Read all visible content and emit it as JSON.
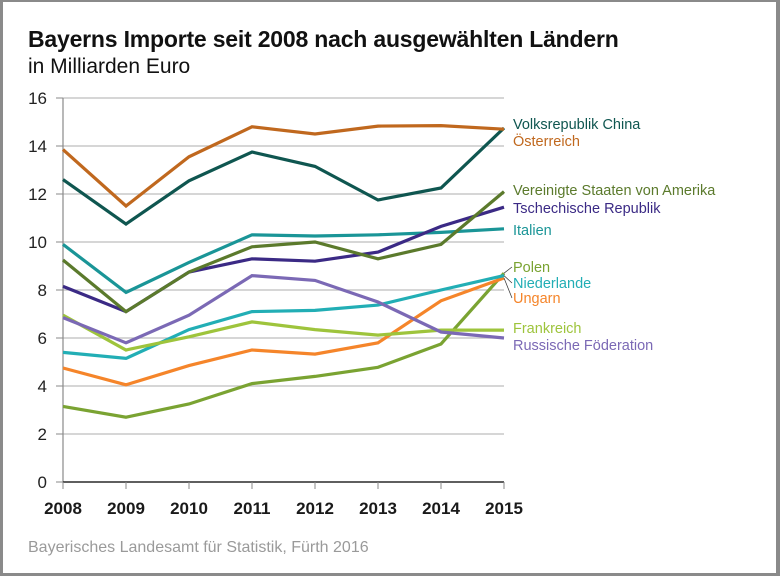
{
  "chart_data": {
    "type": "line",
    "title": "Bayerns Importe seit 2008 nach ausgewählten Ländern",
    "subtitle": "in Milliarden Euro",
    "source": "Bayerisches Landesamt für Statistik, Fürth 2016",
    "xlabel": "",
    "ylabel": "",
    "x": [
      "2008",
      "2009",
      "2010",
      "2011",
      "2012",
      "2013",
      "2014",
      "2015"
    ],
    "ylim": [
      0,
      16
    ],
    "yticks": [
      "0",
      "2",
      "4",
      "6",
      "8",
      "10",
      "12",
      "14",
      "16"
    ],
    "grid": true,
    "legend": "right (direct labels)",
    "series": [
      {
        "name": "Volksrepublik China",
        "color": "#0f5650",
        "values": [
          12.6,
          10.75,
          12.55,
          13.75,
          13.15,
          11.75,
          12.25,
          14.75
        ]
      },
      {
        "name": "Österreich",
        "color": "#c0681e",
        "values": [
          13.85,
          11.5,
          13.55,
          14.8,
          14.5,
          14.83,
          14.85,
          14.7
        ]
      },
      {
        "name": "Vereinigte Staaten von Amerika",
        "color": "#5b7a2c",
        "values": [
          9.25,
          7.1,
          8.75,
          9.8,
          10.0,
          9.3,
          9.9,
          12.1
        ]
      },
      {
        "name": "Tschechische Republik",
        "color": "#3b2a85",
        "values": [
          8.15,
          7.1,
          8.75,
          9.3,
          9.2,
          9.58,
          10.65,
          11.45
        ]
      },
      {
        "name": "Italien",
        "color": "#1a9597",
        "values": [
          9.9,
          7.9,
          9.15,
          10.3,
          10.25,
          10.3,
          10.4,
          10.55
        ]
      },
      {
        "name": "Polen",
        "color": "#7aa332",
        "values": [
          3.15,
          2.7,
          3.25,
          4.1,
          4.4,
          4.78,
          5.75,
          8.7
        ]
      },
      {
        "name": "Niederlande",
        "color": "#22aeb5",
        "values": [
          5.4,
          5.15,
          6.35,
          7.1,
          7.15,
          7.37,
          8.0,
          8.6
        ]
      },
      {
        "name": "Ungarn",
        "color": "#f5852a",
        "values": [
          4.75,
          4.05,
          4.85,
          5.5,
          5.33,
          5.8,
          7.55,
          8.5
        ]
      },
      {
        "name": "Frankreich",
        "color": "#9ec43c",
        "values": [
          6.95,
          5.5,
          6.05,
          6.67,
          6.35,
          6.12,
          6.33,
          6.33
        ]
      },
      {
        "name": "Russische Föderation",
        "color": "#7b69b5",
        "values": [
          6.85,
          5.8,
          6.95,
          8.6,
          8.4,
          7.5,
          6.25,
          6.0
        ]
      }
    ]
  }
}
